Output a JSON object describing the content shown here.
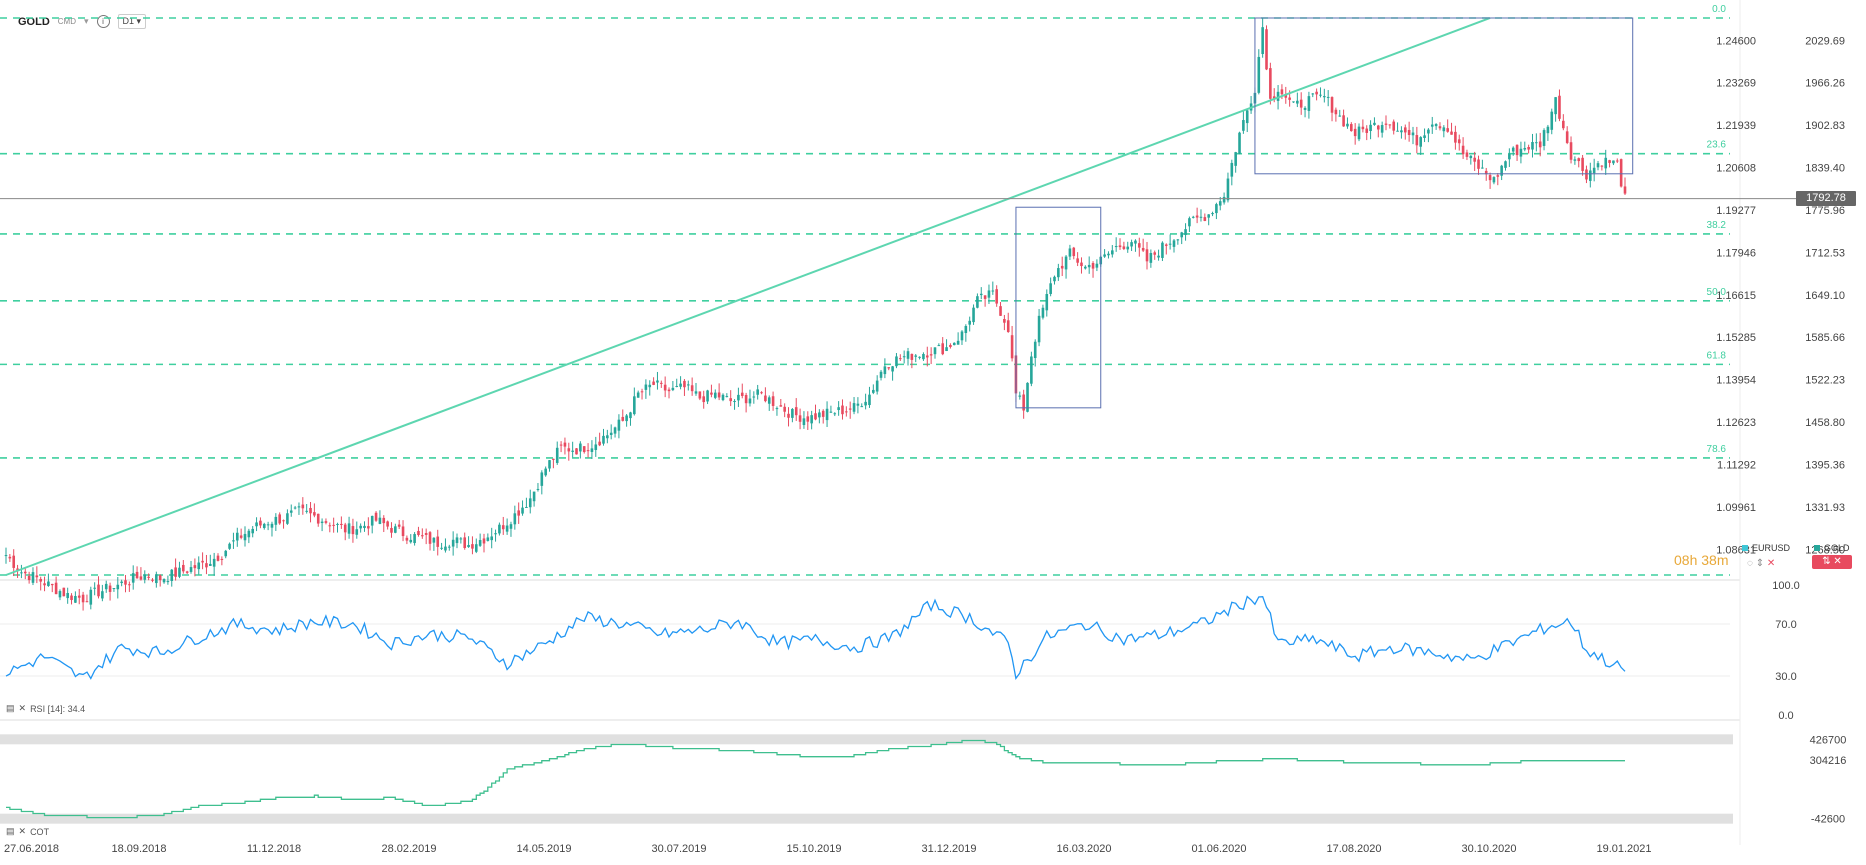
{
  "toolbar": {
    "symbol": "GOLD",
    "instrument_type": "CMD",
    "timeframe": "D1",
    "info_icon": "info-icon",
    "caret_icon": "chevron-down-icon"
  },
  "colors": {
    "up": "#26a69a",
    "down": "#e84a5f",
    "fib": "#3fcf9f",
    "trend": "#5dd6b0",
    "box": "#5a6fb0",
    "rsi": "#2196f3",
    "cot": "#3fbf8f",
    "grid_band": "#e0e0e0"
  },
  "chart_data": [
    {
      "type": "candlestick",
      "title": "GOLD",
      "x_ticks": [
        "27.06.2018",
        "18.09.2018",
        "11.12.2018",
        "28.02.2019",
        "14.05.2019",
        "30.07.2019",
        "15.10.2019",
        "31.12.2019",
        "16.03.2020",
        "01.06.2020",
        "17.08.2020",
        "30.10.2020",
        "19.01.2021"
      ],
      "y_ticks_right": [
        2029.69,
        1966.26,
        1902.83,
        1839.4,
        1775.96,
        1712.53,
        1649.1,
        1585.66,
        1522.23,
        1458.8,
        1395.36,
        1331.93,
        1268.5
      ],
      "y_ticks_secondary": [
        "1.24600",
        "1.23269",
        "1.21939",
        "1.20608",
        "1.19277",
        "1.17946",
        "1.16615",
        "1.15285",
        "1.13954",
        "1.12623",
        "1.11292",
        "1.09961",
        "1.08631"
      ],
      "ylim": [
        1230,
        2060
      ],
      "last_price": "1792.78",
      "fib_levels": [
        {
          "label": "0.0",
          "value": 2063
        },
        {
          "label": "23.6",
          "value": 1860
        },
        {
          "label": "38.2",
          "value": 1740
        },
        {
          "label": "50.0",
          "value": 1640
        },
        {
          "label": "61.8",
          "value": 1545
        },
        {
          "label": "78.6",
          "value": 1405
        },
        {
          "label": "",
          "value": 1230
        }
      ],
      "overlay_legend": [
        {
          "name": "EURUSD"
        },
        {
          "name": "GOLD"
        }
      ],
      "overlay_timer": "08h 38m",
      "closes_anchor": [
        [
          0,
          1260
        ],
        [
          4,
          1235
        ],
        [
          8,
          1225
        ],
        [
          12,
          1212
        ],
        [
          16,
          1200
        ],
        [
          20,
          1195
        ],
        [
          24,
          1205
        ],
        [
          28,
          1212
        ],
        [
          32,
          1222
        ],
        [
          36,
          1230
        ],
        [
          40,
          1225
        ],
        [
          44,
          1232
        ],
        [
          48,
          1240
        ],
        [
          52,
          1248
        ],
        [
          56,
          1262
        ],
        [
          60,
          1285
        ],
        [
          64,
          1300
        ],
        [
          68,
          1310
        ],
        [
          72,
          1315
        ],
        [
          76,
          1325
        ],
        [
          80,
          1318
        ],
        [
          84,
          1308
        ],
        [
          88,
          1298
        ],
        [
          92,
          1302
        ],
        [
          96,
          1312
        ],
        [
          100,
          1300
        ],
        [
          104,
          1290
        ],
        [
          108,
          1285
        ],
        [
          112,
          1278
        ],
        [
          116,
          1282
        ],
        [
          120,
          1275
        ],
        [
          124,
          1285
        ],
        [
          128,
          1300
        ],
        [
          132,
          1320
        ],
        [
          136,
          1345
        ],
        [
          140,
          1390
        ],
        [
          144,
          1420
        ],
        [
          148,
          1418
        ],
        [
          152,
          1425
        ],
        [
          156,
          1440
        ],
        [
          160,
          1460
        ],
        [
          164,
          1500
        ],
        [
          168,
          1515
        ],
        [
          172,
          1505
        ],
        [
          176,
          1510
        ],
        [
          180,
          1495
        ],
        [
          184,
          1500
        ],
        [
          188,
          1490
        ],
        [
          192,
          1495
        ],
        [
          196,
          1500
        ],
        [
          200,
          1485
        ],
        [
          204,
          1470
        ],
        [
          208,
          1465
        ],
        [
          212,
          1470
        ],
        [
          216,
          1475
        ],
        [
          220,
          1480
        ],
        [
          224,
          1500
        ],
        [
          228,
          1545
        ],
        [
          232,
          1555
        ],
        [
          236,
          1560
        ],
        [
          240,
          1565
        ],
        [
          244,
          1570
        ],
        [
          248,
          1590
        ],
        [
          252,
          1640
        ],
        [
          256,
          1650
        ],
        [
          260,
          1600
        ],
        [
          262,
          1500
        ],
        [
          264,
          1480
        ],
        [
          266,
          1560
        ],
        [
          268,
          1610
        ],
        [
          272,
          1680
        ],
        [
          276,
          1710
        ],
        [
          280,
          1690
        ],
        [
          284,
          1700
        ],
        [
          288,
          1720
        ],
        [
          292,
          1730
        ],
        [
          296,
          1700
        ],
        [
          300,
          1720
        ],
        [
          304,
          1740
        ],
        [
          308,
          1760
        ],
        [
          312,
          1770
        ],
        [
          316,
          1800
        ],
        [
          320,
          1890
        ],
        [
          324,
          1960
        ],
        [
          326,
          2050
        ],
        [
          328,
          1940
        ],
        [
          330,
          1960
        ],
        [
          334,
          1930
        ],
        [
          338,
          1940
        ],
        [
          342,
          1945
        ],
        [
          346,
          1915
        ],
        [
          350,
          1890
        ],
        [
          354,
          1900
        ],
        [
          358,
          1910
        ],
        [
          362,
          1895
        ],
        [
          366,
          1880
        ],
        [
          370,
          1910
        ],
        [
          374,
          1900
        ],
        [
          378,
          1860
        ],
        [
          382,
          1840
        ],
        [
          386,
          1820
        ],
        [
          390,
          1860
        ],
        [
          394,
          1870
        ],
        [
          398,
          1875
        ],
        [
          402,
          1940
        ],
        [
          406,
          1860
        ],
        [
          410,
          1830
        ],
        [
          414,
          1850
        ],
        [
          418,
          1845
        ],
        [
          420,
          1792
        ]
      ]
    },
    {
      "type": "line",
      "title": "RSI",
      "label": "RSI [14]: 34.4",
      "ylim": [
        0,
        100
      ],
      "y_ticks": [
        100.0,
        70.0,
        30.0,
        0.0
      ],
      "last": 34.4,
      "series": [
        {
          "values_anchor": [
            [
              0,
              32
            ],
            [
              10,
              45
            ],
            [
              20,
              28
            ],
            [
              30,
              52
            ],
            [
              40,
              48
            ],
            [
              50,
              60
            ],
            [
              60,
              70
            ],
            [
              70,
              65
            ],
            [
              80,
              72
            ],
            [
              90,
              70
            ],
            [
              100,
              55
            ],
            [
              110,
              62
            ],
            [
              120,
              60
            ],
            [
              130,
              40
            ],
            [
              140,
              55
            ],
            [
              150,
              75
            ],
            [
              160,
              70
            ],
            [
              170,
              62
            ],
            [
              180,
              65
            ],
            [
              190,
              72
            ],
            [
              200,
              55
            ],
            [
              210,
              58
            ],
            [
              220,
              52
            ],
            [
              230,
              60
            ],
            [
              240,
              85
            ],
            [
              250,
              75
            ],
            [
              260,
              55
            ],
            [
              262,
              32
            ],
            [
              270,
              60
            ],
            [
              280,
              70
            ],
            [
              290,
              58
            ],
            [
              300,
              62
            ],
            [
              310,
              70
            ],
            [
              320,
              85
            ],
            [
              326,
              92
            ],
            [
              330,
              55
            ],
            [
              340,
              58
            ],
            [
              350,
              45
            ],
            [
              360,
              52
            ],
            [
              370,
              48
            ],
            [
              380,
              42
            ],
            [
              390,
              55
            ],
            [
              400,
              68
            ],
            [
              406,
              72
            ],
            [
              410,
              50
            ],
            [
              420,
              34
            ]
          ]
        }
      ]
    },
    {
      "type": "line",
      "title": "COT",
      "label": "COT",
      "y_ticks": [
        426700,
        304216,
        -42600
      ],
      "ylim": [
        -80000,
        470000
      ],
      "series": [
        {
          "values_anchor": [
            [
              0,
              20000
            ],
            [
              10,
              -20000
            ],
            [
              20,
              -30000
            ],
            [
              30,
              -35000
            ],
            [
              40,
              -20000
            ],
            [
              50,
              30000
            ],
            [
              60,
              50000
            ],
            [
              70,
              80000
            ],
            [
              80,
              90000
            ],
            [
              90,
              70000
            ],
            [
              100,
              80000
            ],
            [
              110,
              30000
            ],
            [
              120,
              60000
            ],
            [
              125,
              140000
            ],
            [
              130,
              250000
            ],
            [
              140,
              300000
            ],
            [
              150,
              370000
            ],
            [
              160,
              400000
            ],
            [
              170,
              380000
            ],
            [
              180,
              370000
            ],
            [
              190,
              360000
            ],
            [
              200,
              340000
            ],
            [
              210,
              320000
            ],
            [
              220,
              330000
            ],
            [
              230,
              370000
            ],
            [
              240,
              390000
            ],
            [
              250,
              420000
            ],
            [
              256,
              410000
            ],
            [
              262,
              320000
            ],
            [
              270,
              290000
            ],
            [
              280,
              290000
            ],
            [
              290,
              280000
            ],
            [
              300,
              270000
            ],
            [
              310,
              290000
            ],
            [
              320,
              300000
            ],
            [
              330,
              310000
            ],
            [
              340,
              300000
            ],
            [
              350,
              290000
            ],
            [
              360,
              285000
            ],
            [
              370,
              280000
            ],
            [
              380,
              275000
            ],
            [
              390,
              290000
            ],
            [
              400,
              305000
            ],
            [
              420,
              305000
            ]
          ]
        }
      ]
    }
  ]
}
